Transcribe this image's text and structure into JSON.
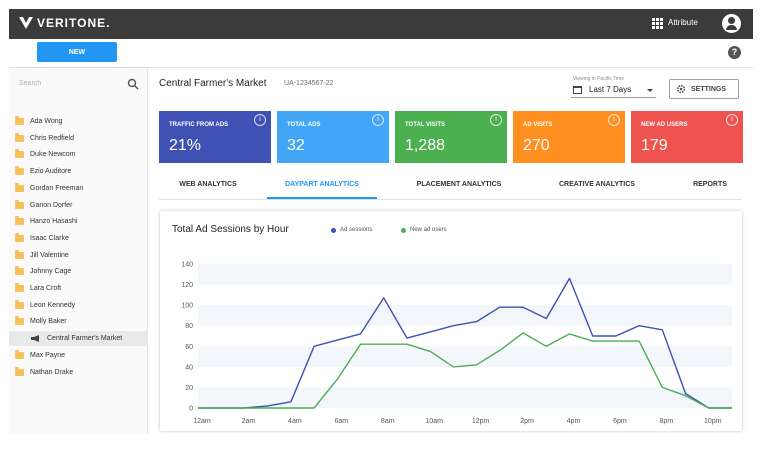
{
  "app": {
    "logo": "VERITONE.",
    "attribute_label": "Attribute"
  },
  "toolbar": {
    "new_label": "NEW",
    "help_glyph": "?"
  },
  "sidebar": {
    "search_placeholder": "Search",
    "items": [
      {
        "label": "Ada Wong",
        "icon": "folder-icon"
      },
      {
        "label": "Chris Redfield",
        "icon": "folder-icon"
      },
      {
        "label": "Duke Newcom",
        "icon": "folder-icon"
      },
      {
        "label": "Ezio Auditore",
        "icon": "folder-icon"
      },
      {
        "label": "Gordan Freeman",
        "icon": "folder-icon"
      },
      {
        "label": "Ganon Dorfer",
        "icon": "folder-icon"
      },
      {
        "label": "Hanzo Hasashi",
        "icon": "folder-icon"
      },
      {
        "label": "Isaac Clarke",
        "icon": "folder-icon"
      },
      {
        "label": "Jill Valentine",
        "icon": "folder-icon"
      },
      {
        "label": "Johnny Cage",
        "icon": "folder-icon"
      },
      {
        "label": "Lara Croft",
        "icon": "folder-icon"
      },
      {
        "label": "Leon Kennedy",
        "icon": "folder-icon"
      },
      {
        "label": "Molly Baker",
        "icon": "folder-icon"
      },
      {
        "label": "Central Farmer's Market",
        "icon": "megaphone-icon",
        "selected": true
      },
      {
        "label": "Max Payne",
        "icon": "folder-icon"
      },
      {
        "label": "Nathan Drake",
        "icon": "folder-icon"
      }
    ]
  },
  "header": {
    "title": "Central Farmer's Market",
    "account_id": "UA-1234567-22",
    "timezone_label": "Viewing in Pacific Time",
    "date_range": "Last 7 Days",
    "settings_label": "SETTINGS"
  },
  "cards": [
    {
      "label": "TRAFFIC FROM ADS",
      "value": "21%",
      "color": "#3f51b5"
    },
    {
      "label": "TOTAL ADS",
      "value": "32",
      "color": "#42a5f5"
    },
    {
      "label": "TOTAL VISITS",
      "value": "1,288",
      "color": "#4caf50"
    },
    {
      "label": "AD VISITS",
      "value": "270",
      "color": "#ff8f1f"
    },
    {
      "label": "NEW AD USERS",
      "value": "179",
      "color": "#ef5350"
    }
  ],
  "info_glyph": "i",
  "tabs": [
    {
      "label": "WEB ANALYTICS",
      "active": false
    },
    {
      "label": "DAYPART ANALYTICS",
      "active": true
    },
    {
      "label": "PLACEMENT ANALYTICS",
      "active": false
    },
    {
      "label": "CREATIVE ANALYTICS",
      "active": false
    },
    {
      "label": "REPORTS",
      "active": false
    }
  ],
  "colors": {
    "accent": "#2196f3",
    "topbar": "#3b3b3b",
    "series_sessions": "#3f51b5",
    "series_new_users": "#4caf50"
  },
  "chart_data": {
    "type": "line",
    "title": "Total Ad Sessions by Hour",
    "x": [
      "12am",
      "1am",
      "2am",
      "3am",
      "4am",
      "5am",
      "6am",
      "7am",
      "8am",
      "9am",
      "10am",
      "11am",
      "12pm",
      "1pm",
      "2pm",
      "3pm",
      "4pm",
      "5pm",
      "6pm",
      "7pm",
      "8pm",
      "9pm",
      "10pm",
      "11pm"
    ],
    "xticks": [
      "12am",
      "2am",
      "4am",
      "6am",
      "8am",
      "10am",
      "12pm",
      "2pm",
      "4pm",
      "6pm",
      "8pm",
      "10pm"
    ],
    "yticks": [
      0,
      20,
      40,
      60,
      80,
      100,
      120,
      140
    ],
    "ylim": [
      0,
      140
    ],
    "grid": "horizontal bands",
    "legend": "top",
    "series": [
      {
        "name": "Ad sessions",
        "color": "#3f51b5",
        "values": [
          0,
          0,
          0,
          2,
          6,
          60,
          66,
          72,
          107,
          68,
          74,
          80,
          84,
          98,
          98,
          87,
          126,
          70,
          70,
          80,
          76,
          14,
          0,
          0
        ]
      },
      {
        "name": "New ad users",
        "color": "#4caf50",
        "values": [
          0,
          0,
          0,
          0,
          0,
          0,
          28,
          62,
          62,
          62,
          55,
          40,
          42,
          56,
          73,
          60,
          72,
          65,
          65,
          65,
          20,
          12,
          0,
          0
        ]
      }
    ]
  }
}
